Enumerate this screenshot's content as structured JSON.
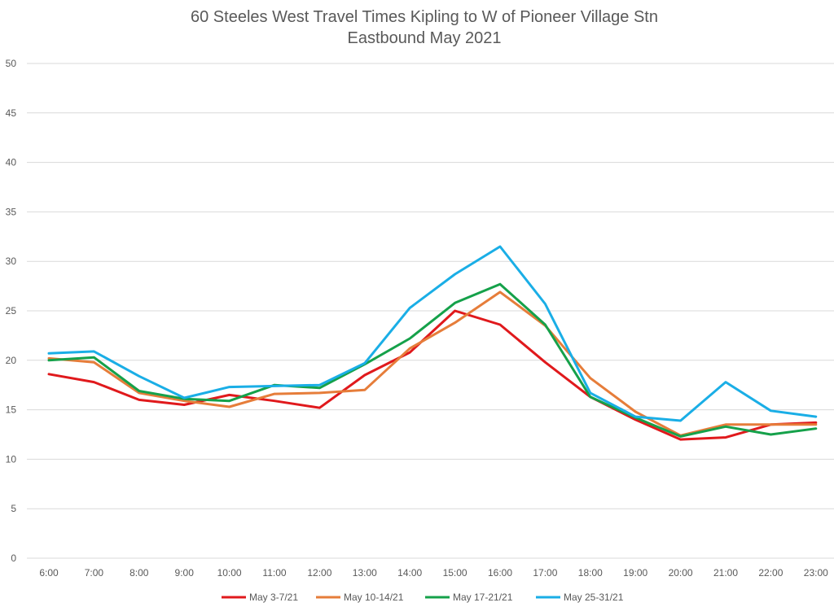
{
  "chart_data": {
    "type": "line",
    "title_lines": [
      "60 Steeles West Travel Times Kipling to W of Pioneer Village Stn",
      "Eastbound  May 2021"
    ],
    "xlabel": "",
    "ylabel": "",
    "categories": [
      "6:00",
      "7:00",
      "8:00",
      "9:00",
      "10:00",
      "11:00",
      "12:00",
      "13:00",
      "14:00",
      "15:00",
      "16:00",
      "17:00",
      "18:00",
      "19:00",
      "20:00",
      "21:00",
      "22:00",
      "23:00"
    ],
    "y_ticks": [
      "0",
      "5",
      "10",
      "15",
      "20",
      "25",
      "30",
      "35",
      "40",
      "45",
      "50"
    ],
    "ylim": [
      0,
      50
    ],
    "grid": true,
    "legend_position": "bottom",
    "series": [
      {
        "name": "May 3-7/21",
        "color": "#e0191c",
        "values": [
          18.6,
          17.8,
          16.0,
          15.5,
          16.5,
          15.9,
          15.2,
          18.5,
          20.8,
          25.0,
          23.6,
          19.8,
          16.3,
          14.0,
          12.0,
          12.2,
          13.5,
          13.7
        ]
      },
      {
        "name": "May 10-14/21",
        "color": "#e67d3a",
        "values": [
          20.2,
          19.8,
          16.7,
          15.9,
          15.3,
          16.6,
          16.7,
          17.0,
          21.2,
          23.8,
          26.9,
          23.5,
          18.2,
          14.8,
          12.4,
          13.5,
          13.5,
          13.5
        ]
      },
      {
        "name": "May 17-21/21",
        "color": "#15a14a",
        "values": [
          20.0,
          20.3,
          16.9,
          16.1,
          15.9,
          17.5,
          17.2,
          19.6,
          22.2,
          25.8,
          27.7,
          23.6,
          16.3,
          14.2,
          12.3,
          13.3,
          12.5,
          13.1
        ]
      },
      {
        "name": "May 25-31/21",
        "color": "#1aaee6",
        "values": [
          20.7,
          20.9,
          18.4,
          16.2,
          17.3,
          17.4,
          17.5,
          19.7,
          25.3,
          28.7,
          31.5,
          25.7,
          16.7,
          14.3,
          13.9,
          17.8,
          14.9,
          14.3
        ]
      }
    ]
  }
}
